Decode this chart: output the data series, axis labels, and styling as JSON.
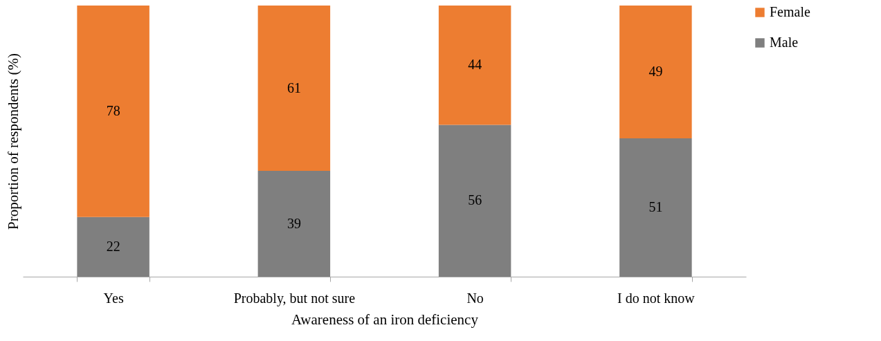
{
  "chart_data": {
    "type": "bar",
    "xlabel": "Awareness of an iron deficiency",
    "ylabel": "Proportion of respondents (%)",
    "categories": [
      "Yes",
      "Probably, but not sure",
      "No",
      "I do not know"
    ],
    "stacked": true,
    "data_labels": true,
    "legend": "right",
    "series": [
      {
        "name": "Male",
        "color": "#7f7f7f",
        "values": [
          22,
          39,
          56,
          51
        ]
      },
      {
        "name": "Female",
        "color": "#ed7d31",
        "values": [
          78,
          61,
          44,
          49
        ]
      }
    ]
  }
}
